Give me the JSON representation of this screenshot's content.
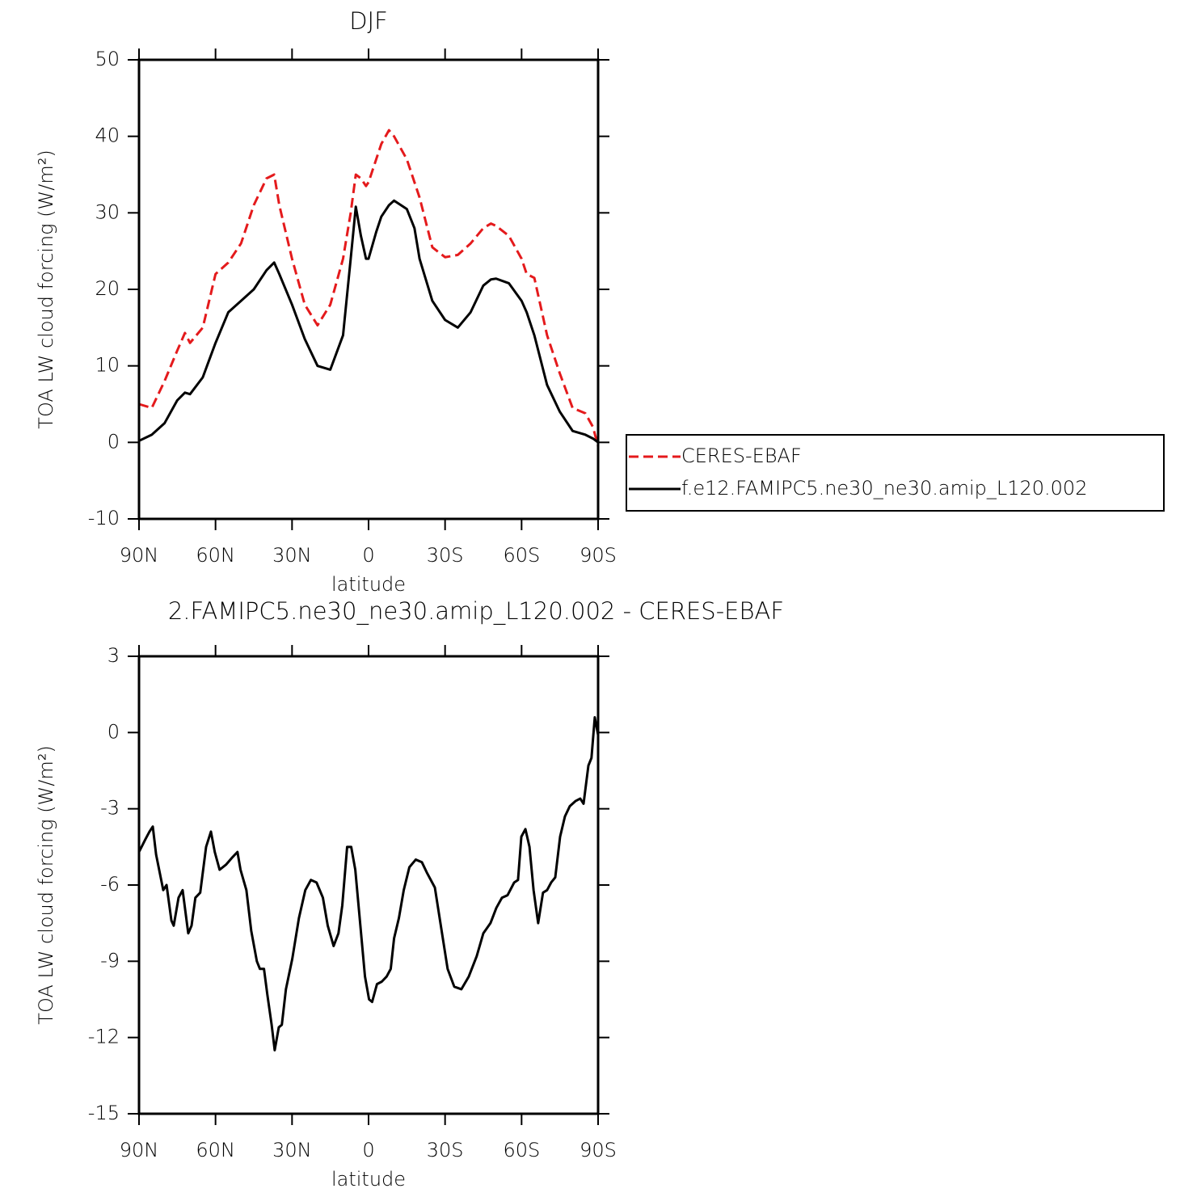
{
  "chart_data": [
    {
      "type": "line",
      "title": "DJF",
      "xlabel": "latitude",
      "ylabel": "TOA LW cloud forcing (W/m²)",
      "x": [
        90,
        85,
        80,
        75,
        72,
        70,
        65,
        60,
        55,
        50,
        45,
        40,
        37,
        35,
        30,
        25,
        20,
        15,
        10,
        7,
        5,
        3,
        1,
        0,
        -3,
        -5,
        -8,
        -10,
        -15,
        -18,
        -20,
        -25,
        -30,
        -35,
        -40,
        -45,
        -48,
        -50,
        -55,
        -60,
        -62,
        -65,
        -70,
        -75,
        -80,
        -85,
        -88,
        -90
      ],
      "series": [
        {
          "name": "CERES-EBAF",
          "color": "#e41a1c",
          "line_style": "dashed",
          "values": [
            5,
            4.5,
            8,
            12,
            14.3,
            13,
            15,
            22,
            23.5,
            26,
            31,
            34.5,
            35,
            31,
            24,
            18,
            15.3,
            18,
            24,
            30,
            35,
            34.5,
            33.5,
            34,
            37,
            39,
            40.8,
            40,
            37,
            34,
            32,
            25.5,
            24.2,
            24.5,
            26,
            28,
            28.6,
            28.3,
            27,
            24,
            22,
            21.5,
            14,
            9,
            4.5,
            3.8,
            2,
            -0.5
          ]
        },
        {
          "name": "f.e12.FAMIPC5.ne30_ne30.amip_L120.002",
          "color": "#000000",
          "line_style": "solid",
          "values": [
            0.2,
            1,
            2.5,
            5.5,
            6.5,
            6.3,
            8.5,
            13,
            17,
            18.5,
            20,
            22.5,
            23.5,
            22,
            18,
            13.5,
            10,
            9.5,
            14,
            24,
            30.8,
            27,
            24,
            24,
            27.5,
            29.5,
            31,
            31.6,
            30.5,
            28,
            24,
            18.5,
            16,
            15,
            17,
            20.5,
            21.3,
            21.4,
            20.8,
            18.5,
            17,
            14,
            7.5,
            4,
            1.5,
            1,
            0.5,
            0
          ]
        }
      ],
      "xlim": [
        90,
        -90
      ],
      "xticks": [
        {
          "value": 90,
          "label": "90N"
        },
        {
          "value": 60,
          "label": "60N"
        },
        {
          "value": 30,
          "label": "30N"
        },
        0,
        {
          "value": -30,
          "label": "30S"
        },
        {
          "value": -60,
          "label": "60S"
        },
        {
          "value": -90,
          "label": "90S"
        }
      ],
      "ylim": [
        -10,
        50
      ],
      "yticks": [
        -10,
        0,
        10,
        20,
        30,
        40,
        50
      ],
      "legend": "right"
    },
    {
      "type": "line",
      "title": "2.FAMIPC5.ne30_ne30.amip_L120.002 - CERES-EBAF",
      "xlabel": "latitude",
      "ylabel": "TOA LW cloud forcing (W/m²)",
      "x": [
        90,
        87.5,
        85.9,
        84.6,
        83.3,
        80.5,
        79.2,
        77.3,
        76.4,
        74.5,
        72.9,
        70.7,
        69.4,
        67.9,
        66.0,
        63.7,
        61.8,
        60.3,
        58.4,
        55.9,
        53.3,
        51.4,
        50.2,
        47.9,
        46.0,
        43.8,
        42.6,
        41.0,
        39.7,
        38.0,
        36.8,
        35.2,
        34.0,
        32.4,
        29.9,
        27.3,
        24.8,
        22.6,
        20.4,
        17.9,
        16.0,
        13.7,
        11.8,
        10.3,
        8.4,
        6.8,
        5.2,
        3.3,
        1.4,
        -0.2,
        -1.4,
        -3.3,
        -5.2,
        -7.1,
        -8.7,
        -10.0,
        -11.9,
        -13.8,
        -16.0,
        -18.5,
        -20.9,
        -22.8,
        -26.0,
        -28.5,
        -31.0,
        -33.6,
        -36.4,
        -39.3,
        -42.4,
        -45.0,
        -47.8,
        -50.1,
        -52.3,
        -54.5,
        -57.1,
        -58.6,
        -59.9,
        -61.5,
        -63.1,
        -64.7,
        -66.5,
        -68.4,
        -70.0,
        -71.6,
        -73.2,
        -75.1,
        -77.0,
        -78.9,
        -81.1,
        -83.0,
        -84.3,
        -86.2,
        -87.4,
        -88.7,
        -90
      ],
      "values": [
        -4.7,
        -4.2,
        -3.9,
        -3.7,
        -4.8,
        -6.2,
        -6,
        -7.4,
        -7.6,
        -6.5,
        -6.2,
        -7.9,
        -7.6,
        -6.5,
        -6.3,
        -4.5,
        -3.9,
        -4.7,
        -5.4,
        -5.2,
        -4.9,
        -4.7,
        -5.4,
        -6.2,
        -7.8,
        -9,
        -9.3,
        -9.3,
        -10.3,
        -11.5,
        -12.5,
        -11.6,
        -11.5,
        -10.1,
        -8.9,
        -7.3,
        -6.2,
        -5.8,
        -5.9,
        -6.5,
        -7.6,
        -8.4,
        -7.9,
        -6.8,
        -4.5,
        -4.5,
        -5.4,
        -7.5,
        -9.6,
        -10.5,
        -10.6,
        -9.9,
        -9.8,
        -9.6,
        -9.3,
        -8.1,
        -7.3,
        -6.2,
        -5.3,
        -5.0,
        -5.1,
        -5.5,
        -6.1,
        -7.7,
        -9.3,
        -10,
        -10.1,
        -9.6,
        -8.8,
        -7.9,
        -7.5,
        -6.9,
        -6.5,
        -6.4,
        -5.9,
        -5.8,
        -4.1,
        -3.8,
        -4.5,
        -6.2,
        -7.5,
        -6.3,
        -6.2,
        -5.9,
        -5.7,
        -4.1,
        -3.3,
        -2.9,
        -2.7,
        -2.6,
        -2.8,
        -1.3,
        -1.0,
        0.6,
        -0.1
      ],
      "color": "#000000",
      "line_style": "solid",
      "xlim": [
        90,
        -90
      ],
      "xticks": [
        {
          "value": 90,
          "label": "90N"
        },
        {
          "value": 60,
          "label": "60N"
        },
        {
          "value": 30,
          "label": "30N"
        },
        0,
        {
          "value": -30,
          "label": "30S"
        },
        {
          "value": -60,
          "label": "60S"
        },
        {
          "value": -90,
          "label": "90S"
        }
      ],
      "ylim": [
        -15,
        3
      ],
      "yticks": [
        -15,
        -12,
        -9,
        -6,
        -3,
        0,
        3
      ]
    }
  ]
}
